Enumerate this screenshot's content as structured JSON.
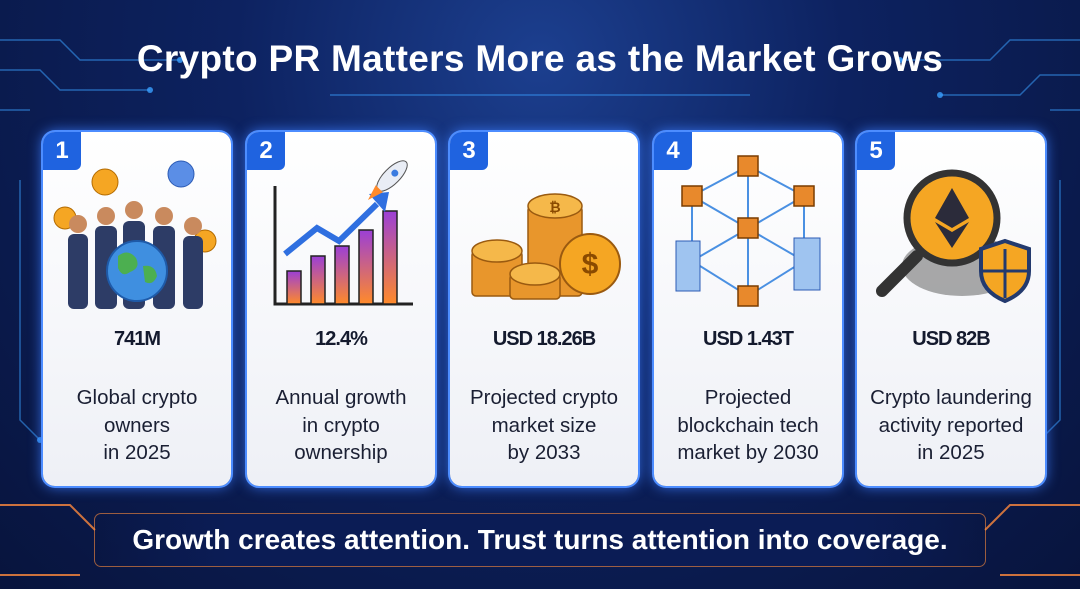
{
  "header": {
    "title": "Crypto PR Matters More as the Market Grows"
  },
  "cards": [
    {
      "number": "1",
      "stat": "741M",
      "description": [
        "Global crypto",
        "owners",
        "in 2025"
      ]
    },
    {
      "number": "2",
      "stat": "12.4%",
      "description": [
        "Annual growth",
        "in crypto",
        "ownership"
      ]
    },
    {
      "number": "3",
      "stat": "USD 18.26B",
      "description": [
        "Projected crypto",
        "market size",
        "by 2033"
      ]
    },
    {
      "number": "4",
      "stat": "USD 1.43T",
      "description": [
        "Projected",
        "blockchain tech",
        "market by 2030"
      ]
    },
    {
      "number": "5",
      "stat": "USD 82B",
      "description": [
        "Crypto laundering",
        "activity reported",
        "in 2025"
      ]
    }
  ],
  "footer": {
    "tagline": "Growth creates attention. Trust turns attention into coverage."
  }
}
